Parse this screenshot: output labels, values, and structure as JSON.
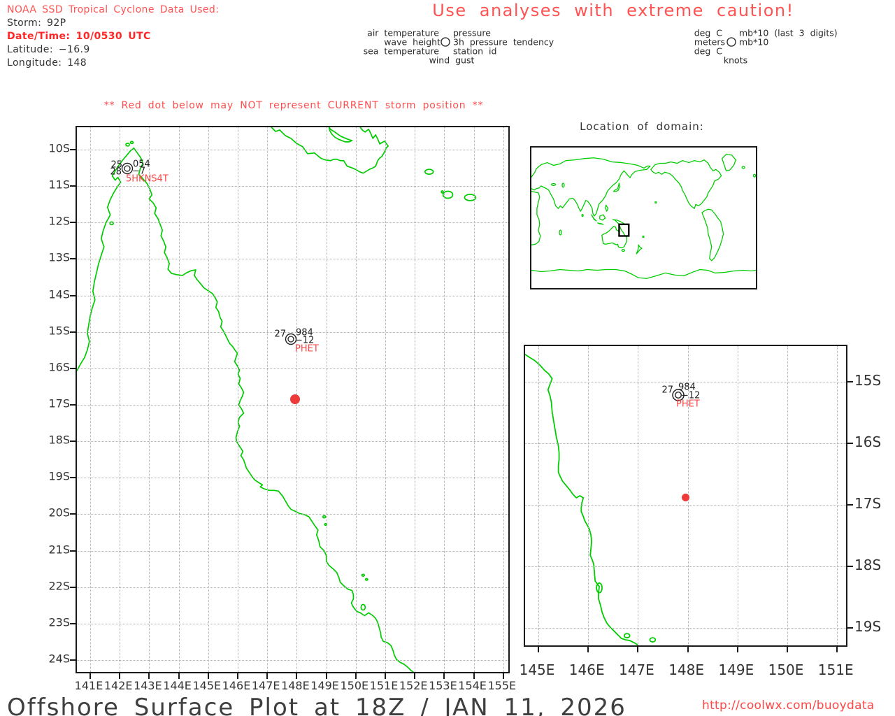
{
  "header": {
    "source": "NOAA SSD Tropical Cyclone Data Used:",
    "storm": "Storm: 92P",
    "datetime": "Date/Time: 10/0530 UTC",
    "latitude": "Latitude: −16.9",
    "longitude": "Longitude: 148"
  },
  "titles": {
    "caution": "Use analyses with extreme caution!",
    "warning": "** Red dot below may NOT represent CURRENT storm position **",
    "inset": "Location of domain:",
    "footer": "Offshore Surface Plot at 18Z / JAN 11, 2026",
    "url": "http://coolwx.com/buoydata"
  },
  "legend": {
    "rows_left": [
      "air temperature",
      "wave height",
      "sea temperature",
      "wind gust"
    ],
    "rows_right": [
      "pressure",
      "3h pressure tendency",
      "station id"
    ],
    "units_left": [
      "deg C",
      "meters",
      "deg C",
      "knots"
    ],
    "units_right": [
      "mb*10 (last 3 digits)",
      "mb*10"
    ]
  },
  "main_map": {
    "x_labels": [
      "141E",
      "142E",
      "143E",
      "144E",
      "145E",
      "146E",
      "147E",
      "148E",
      "149E",
      "150E",
      "151E",
      "152E",
      "153E",
      "154E",
      "155E"
    ],
    "y_labels": [
      "10S",
      "11S",
      "12S",
      "13S",
      "14S",
      "15S",
      "16S",
      "17S",
      "18S",
      "19S",
      "20S",
      "21S",
      "22S",
      "23S",
      "24S"
    ]
  },
  "zoom_map": {
    "x_labels": [
      "145E",
      "146E",
      "147E",
      "148E",
      "149E",
      "150E",
      "151E"
    ],
    "y_labels": [
      "15S",
      "16S",
      "17S",
      "18S",
      "19S"
    ]
  },
  "stations": {
    "hkns4t": {
      "air_temp": "25",
      "pressure": "054",
      "sea_temp": "28",
      "pressure_tendency": "−7",
      "station_id": "5HKNS4T"
    },
    "phet": {
      "air_temp": "27",
      "pressure": "984",
      "pressure_tendency": "−12",
      "station_id": "PHET"
    }
  },
  "colors": {
    "coastline_green": "#00cc00",
    "alert_red": "#ff5252",
    "storm_dot_red": "#ee3a3a",
    "station_id_red": "#ff4444"
  }
}
